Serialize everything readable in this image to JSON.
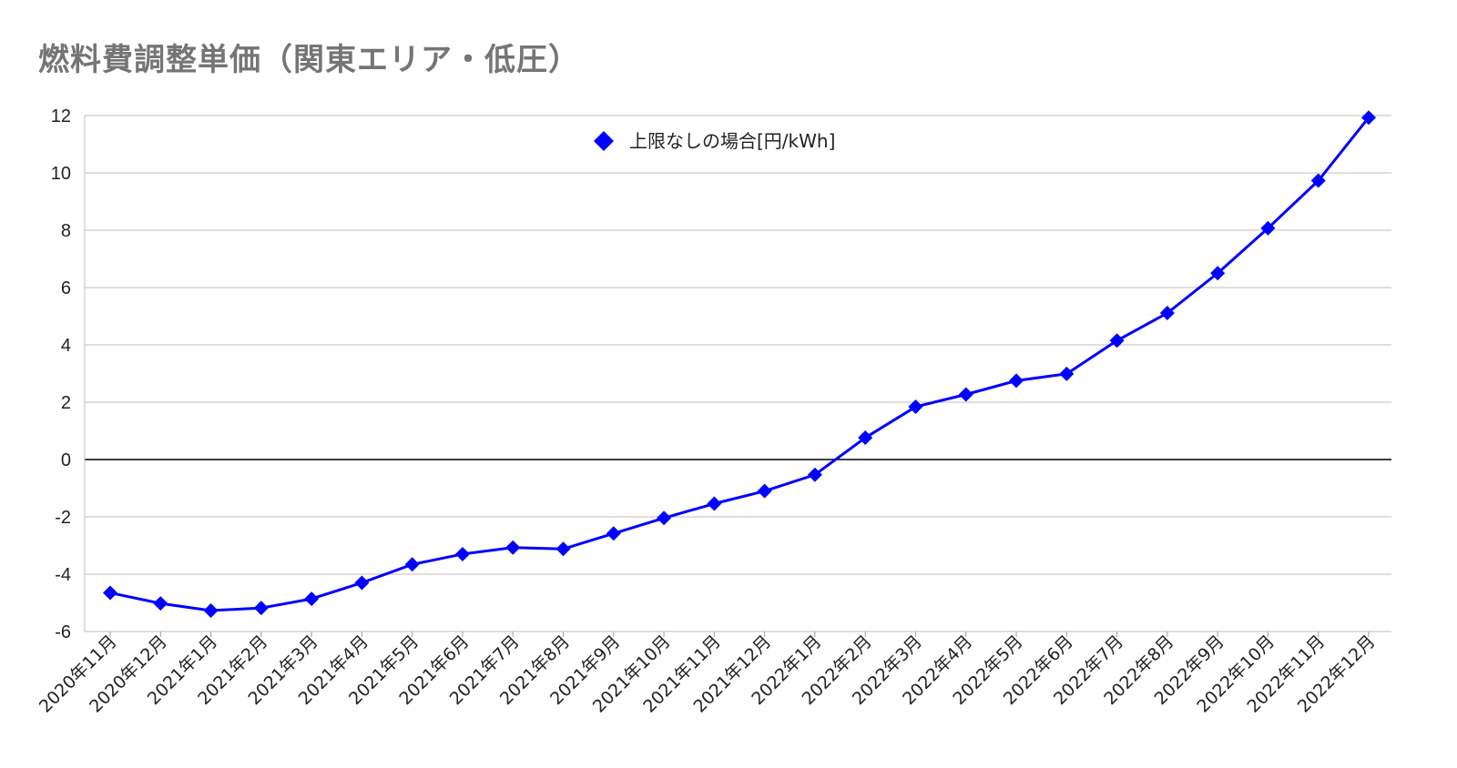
{
  "chart_data": {
    "type": "line",
    "title": "燃料費調整単価（関東エリア・低圧）",
    "xlabel": "",
    "ylabel": "",
    "ylim": [
      -6,
      12
    ],
    "yticks": [
      -6,
      -4,
      -2,
      0,
      2,
      4,
      6,
      8,
      10,
      12
    ],
    "grid": true,
    "legend_position": "top-center",
    "categories": [
      "2020年11月",
      "2020年12月",
      "2021年1月",
      "2021年2月",
      "2021年3月",
      "2021年4月",
      "2021年5月",
      "2021年6月",
      "2021年7月",
      "2021年8月",
      "2021年9月",
      "2021年10月",
      "2021年11月",
      "2021年12月",
      "2022年1月",
      "2022年2月",
      "2022年3月",
      "2022年4月",
      "2022年5月",
      "2022年6月",
      "2022年7月",
      "2022年8月",
      "2022年9月",
      "2022年10月",
      "2022年11月",
      "2022年12月"
    ],
    "series": [
      {
        "name": "上限なしの場合[円/kWh]",
        "color": "#0000ff",
        "marker": "diamond",
        "values": [
          -4.65,
          -5.02,
          -5.27,
          -5.18,
          -4.86,
          -4.3,
          -3.66,
          -3.3,
          -3.07,
          -3.12,
          -2.58,
          -2.04,
          -1.54,
          -1.1,
          -0.53,
          0.76,
          1.84,
          2.27,
          2.75,
          2.99,
          4.15,
          5.11,
          6.5,
          8.07,
          9.73,
          11.93
        ]
      }
    ]
  }
}
